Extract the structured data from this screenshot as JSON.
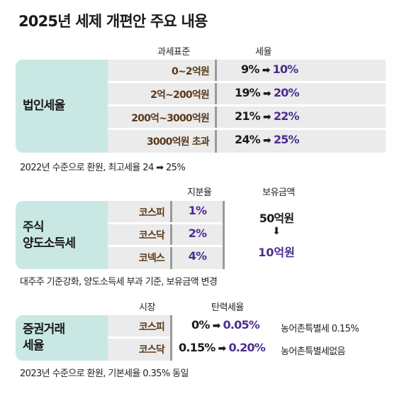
{
  "title": "2025년 세제 개편안 주요 내용",
  "corporate": {
    "label": "법인세율",
    "header_base": "과세표준",
    "header_rate": "세율",
    "rows": [
      {
        "bracket": "0~2억원",
        "old": "9%",
        "new": "10%"
      },
      {
        "bracket": "2억~200억원",
        "old": "19%",
        "new": "20%"
      },
      {
        "bracket": "200억~3000억원",
        "old": "21%",
        "new": "22%"
      },
      {
        "bracket": "3000억원 초과",
        "old": "24%",
        "new": "25%"
      }
    ],
    "note": "2022년 수준으로 환원, 최고세율 24 ➡ 25%"
  },
  "capital_gains": {
    "label_line1": "주식",
    "label_line2": "양도소득세",
    "header_share": "지분율",
    "header_holding": "보유금액",
    "rows": [
      {
        "market": "코스피",
        "share": "1%"
      },
      {
        "market": "코스닥",
        "share": "2%"
      },
      {
        "market": "코넥스",
        "share": "4%"
      }
    ],
    "holding_old": "50억원",
    "holding_arrow": "⬇",
    "holding_new": "10억원",
    "note": "대주주 기준강화, 양도소득세 부과 기준, 보유금액 변경"
  },
  "securities_tax": {
    "label_line1": "증권거래",
    "label_line2": "세율",
    "header_market": "시장",
    "header_rate": "탄력세율",
    "rows": [
      {
        "market": "코스피",
        "old": "0%",
        "new": "0.05%",
        "side": "농어촌특별세 0.15%"
      },
      {
        "market": "코스닥",
        "old": "0.15%",
        "new": "0.20%",
        "side": "농어촌특별세없음"
      }
    ],
    "note": "2023년 수준으로 환원, 기본세율 0.35% 동일"
  },
  "arrow_glyph": "➡",
  "colors": {
    "teal": "#c9e8e3",
    "band": "#ebebeb",
    "purple": "#4b2e90",
    "brown": "#5a3a1c"
  }
}
